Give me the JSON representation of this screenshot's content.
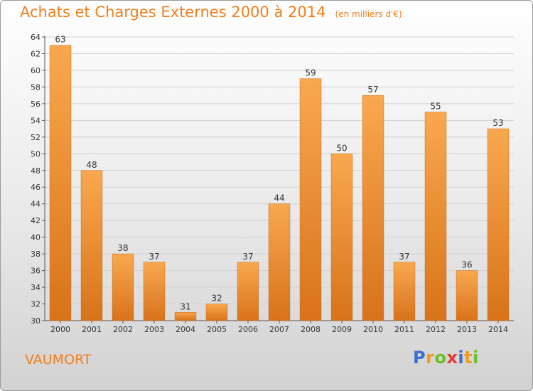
{
  "header": {
    "title": "Achats et Charges Externes 2000 à 2014",
    "unit": "(en milliers d'€)"
  },
  "footer": {
    "commune": "VAUMORT",
    "logo_text": "Proxiti",
    "logo_letters": [
      {
        "char": "P",
        "color": "#3b6fd0"
      },
      {
        "char": "r",
        "color": "#f29a1e"
      },
      {
        "char": "o",
        "color": "#6cbf2a"
      },
      {
        "char": "x",
        "color": "#e53935"
      },
      {
        "char": "i",
        "color": "#3b6fd0"
      },
      {
        "char": "t",
        "color": "#f29a1e"
      },
      {
        "char": "i",
        "color": "#6cbf2a"
      }
    ]
  },
  "chart_data": {
    "type": "bar",
    "title": "Achats et Charges Externes 2000 à 2014",
    "subtitle": "(en milliers d'€)",
    "xlabel": "",
    "ylabel": "",
    "categories": [
      "2000",
      "2001",
      "2002",
      "2003",
      "2004",
      "2005",
      "2006",
      "2007",
      "2008",
      "2009",
      "2010",
      "2011",
      "2012",
      "2013",
      "2014"
    ],
    "values": [
      63,
      48,
      38,
      37,
      31,
      32,
      37,
      44,
      59,
      50,
      57,
      37,
      55,
      36,
      53
    ],
    "ylim": [
      30,
      64
    ],
    "yticks": [
      30,
      32,
      34,
      36,
      38,
      40,
      42,
      44,
      46,
      48,
      50,
      52,
      54,
      56,
      58,
      60,
      62,
      64
    ],
    "grid": true,
    "legend": "none",
    "colors": {
      "bar_light": "#f7a555",
      "bar_dark": "#d9741c",
      "text": "#f07f1a",
      "grid": "#d0d0d0"
    }
  }
}
